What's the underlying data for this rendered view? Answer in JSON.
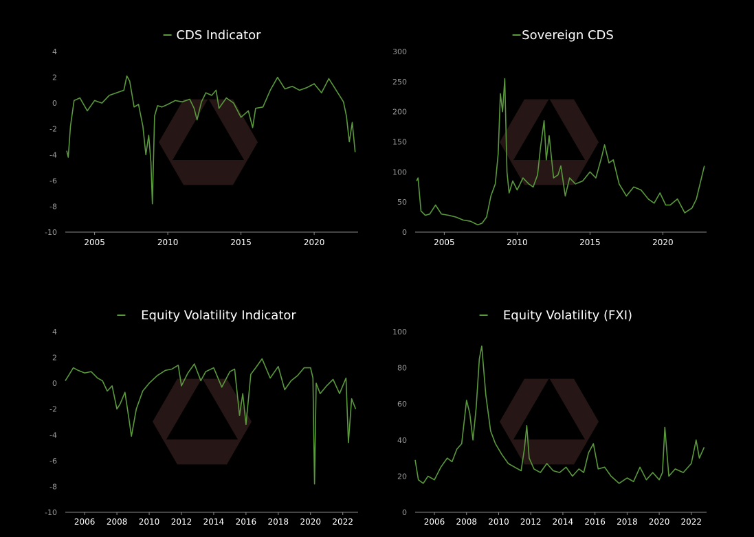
{
  "colors": {
    "background": "#000000",
    "line": "#5a9a3c",
    "logo": "#2a1a18",
    "tick_y": "#9a9a9a",
    "tick_x": "#ffffff",
    "title": "#ffffff"
  },
  "chart_data": [
    {
      "type": "line",
      "title": "CDS Indicator",
      "series": [
        {
          "name": "CDS Indicator",
          "x": [
            2003.1,
            2003.2,
            2003.35,
            2003.6,
            2004.0,
            2004.5,
            2005.0,
            2005.5,
            2006.0,
            2006.5,
            2007.0,
            2007.2,
            2007.4,
            2007.7,
            2008.0,
            2008.3,
            2008.5,
            2008.7,
            2008.85,
            2008.95,
            2009.1,
            2009.3,
            2009.6,
            2010.0,
            2010.5,
            2011.0,
            2011.5,
            2011.8,
            2012.0,
            2012.3,
            2012.6,
            2013.0,
            2013.3,
            2013.5,
            2014.0,
            2014.5,
            2015.0,
            2015.5,
            2015.8,
            2016.0,
            2016.5,
            2017.0,
            2017.5,
            2018.0,
            2018.5,
            2019.0,
            2019.5,
            2020.0,
            2020.5,
            2021.0,
            2021.5,
            2022.0,
            2022.2,
            2022.4,
            2022.6,
            2022.8
          ],
          "y": [
            -3.7,
            -4.2,
            -1.8,
            0.2,
            0.4,
            -0.6,
            0.2,
            0.0,
            0.6,
            0.8,
            1.0,
            2.1,
            1.7,
            -0.3,
            -0.1,
            -1.8,
            -4.0,
            -2.5,
            -4.6,
            -7.8,
            -1.0,
            -0.2,
            -0.3,
            -0.1,
            0.2,
            0.1,
            0.3,
            -0.4,
            -1.3,
            0.1,
            0.8,
            0.6,
            1.0,
            -0.4,
            0.4,
            0.0,
            -1.1,
            -0.6,
            -1.9,
            -0.4,
            -0.3,
            1.0,
            2.0,
            1.1,
            1.3,
            1.0,
            1.2,
            1.5,
            0.8,
            1.9,
            1.0,
            0.1,
            -1.0,
            -3.0,
            -1.5,
            -3.8
          ]
        }
      ],
      "ylim": [
        -10,
        4
      ],
      "yticks": [
        4,
        2,
        0,
        -2,
        -4,
        -6,
        -8,
        -10
      ],
      "xlim": [
        2003.0,
        2023.0
      ],
      "xticks": [
        2005,
        2010,
        2015,
        2020
      ]
    },
    {
      "type": "line",
      "title": "Sovereign CDS",
      "series": [
        {
          "name": "Sovereign CDS",
          "x": [
            2003.1,
            2003.2,
            2003.4,
            2003.7,
            2004.0,
            2004.4,
            2004.8,
            2005.3,
            2005.8,
            2006.3,
            2006.8,
            2007.3,
            2007.6,
            2007.9,
            2008.2,
            2008.5,
            2008.7,
            2008.85,
            2009.0,
            2009.15,
            2009.3,
            2009.45,
            2009.7,
            2010.0,
            2010.4,
            2010.8,
            2011.1,
            2011.4,
            2011.6,
            2011.85,
            2012.0,
            2012.2,
            2012.5,
            2012.8,
            2013.0,
            2013.3,
            2013.6,
            2014.0,
            2014.5,
            2015.0,
            2015.4,
            2015.8,
            2016.0,
            2016.3,
            2016.6,
            2017.0,
            2017.5,
            2018.0,
            2018.5,
            2019.0,
            2019.4,
            2019.8,
            2020.2,
            2020.5,
            2021.0,
            2021.5,
            2022.0,
            2022.3,
            2022.6,
            2022.85
          ],
          "y": [
            85,
            90,
            35,
            28,
            30,
            45,
            30,
            28,
            25,
            20,
            18,
            12,
            15,
            25,
            60,
            80,
            130,
            230,
            200,
            255,
            100,
            65,
            85,
            70,
            90,
            80,
            75,
            95,
            140,
            185,
            120,
            160,
            90,
            95,
            110,
            60,
            90,
            80,
            85,
            100,
            90,
            125,
            145,
            115,
            120,
            80,
            60,
            75,
            70,
            55,
            48,
            65,
            45,
            45,
            55,
            32,
            40,
            55,
            85,
            110
          ]
        }
      ],
      "ylim": [
        0,
        300
      ],
      "yticks": [
        300,
        250,
        200,
        150,
        100,
        50,
        0
      ],
      "xlim": [
        2003.0,
        2023.0
      ],
      "xticks": [
        2005,
        2010,
        2015,
        2020
      ]
    },
    {
      "type": "line",
      "title": "Equity Volatility Indicator",
      "series": [
        {
          "name": "Equity Volatility Indicator",
          "x": [
            2004.8,
            2005.0,
            2005.3,
            2005.6,
            2006.0,
            2006.4,
            2006.8,
            2007.1,
            2007.4,
            2007.7,
            2008.0,
            2008.2,
            2008.5,
            2008.75,
            2008.9,
            2009.2,
            2009.6,
            2010.0,
            2010.5,
            2011.0,
            2011.4,
            2011.8,
            2012.0,
            2012.4,
            2012.8,
            2013.2,
            2013.5,
            2014.0,
            2014.5,
            2015.0,
            2015.3,
            2015.6,
            2015.8,
            2016.0,
            2016.3,
            2016.6,
            2017.0,
            2017.5,
            2018.0,
            2018.4,
            2018.8,
            2019.2,
            2019.6,
            2020.0,
            2020.15,
            2020.25,
            2020.35,
            2020.6,
            2021.0,
            2021.4,
            2021.8,
            2022.2,
            2022.35,
            2022.55,
            2022.8
          ],
          "y": [
            0.2,
            0.6,
            1.2,
            1.0,
            0.8,
            0.9,
            0.4,
            0.2,
            -0.6,
            -0.2,
            -2.0,
            -1.6,
            -0.7,
            -2.8,
            -4.1,
            -2.0,
            -0.6,
            0.0,
            0.6,
            1.0,
            1.1,
            1.4,
            -0.2,
            0.8,
            1.5,
            0.2,
            0.9,
            1.2,
            -0.3,
            0.9,
            1.1,
            -2.5,
            -0.8,
            -3.2,
            0.7,
            1.2,
            1.9,
            0.4,
            1.3,
            -0.5,
            0.2,
            0.6,
            1.2,
            1.2,
            0.4,
            -7.8,
            0.0,
            -0.8,
            -0.2,
            0.3,
            -0.8,
            0.4,
            -4.6,
            -1.2,
            -2.0
          ]
        }
      ],
      "ylim": [
        -10,
        4
      ],
      "yticks": [
        4,
        2,
        0,
        -2,
        -4,
        -6,
        -8,
        -10
      ],
      "xlim": [
        2004.8,
        2022.95
      ],
      "xticks": [
        2006,
        2008,
        2010,
        2012,
        2014,
        2016,
        2018,
        2020,
        2022
      ]
    },
    {
      "type": "line",
      "title": "Equity Volatility (FXI)",
      "series": [
        {
          "name": "Equity Volatility (FXI)",
          "x": [
            2004.8,
            2005.0,
            2005.3,
            2005.6,
            2006.0,
            2006.4,
            2006.8,
            2007.1,
            2007.4,
            2007.7,
            2008.0,
            2008.2,
            2008.4,
            2008.6,
            2008.8,
            2008.95,
            2009.2,
            2009.5,
            2009.8,
            2010.2,
            2010.6,
            2011.0,
            2011.4,
            2011.6,
            2011.75,
            2011.9,
            2012.2,
            2012.6,
            2013.0,
            2013.4,
            2013.8,
            2014.2,
            2014.6,
            2015.0,
            2015.3,
            2015.6,
            2015.9,
            2016.2,
            2016.6,
            2017.0,
            2017.5,
            2018.0,
            2018.4,
            2018.8,
            2019.2,
            2019.6,
            2020.0,
            2020.2,
            2020.35,
            2020.6,
            2021.0,
            2021.5,
            2022.0,
            2022.3,
            2022.5,
            2022.8
          ],
          "y": [
            29,
            18,
            16,
            20,
            18,
            25,
            30,
            28,
            35,
            38,
            62,
            55,
            40,
            58,
            85,
            92,
            65,
            45,
            38,
            32,
            27,
            25,
            23,
            35,
            48,
            30,
            24,
            22,
            27,
            23,
            22,
            25,
            20,
            24,
            22,
            33,
            38,
            24,
            25,
            20,
            16,
            19,
            17,
            25,
            18,
            22,
            18,
            22,
            47,
            20,
            24,
            22,
            27,
            40,
            30,
            36
          ]
        }
      ],
      "ylim": [
        0,
        100
      ],
      "yticks": [
        100,
        80,
        60,
        40,
        20,
        0
      ],
      "xlim": [
        2004.8,
        2022.95
      ],
      "xticks": [
        2006,
        2008,
        2010,
        2012,
        2014,
        2016,
        2018,
        2020,
        2022
      ]
    }
  ]
}
